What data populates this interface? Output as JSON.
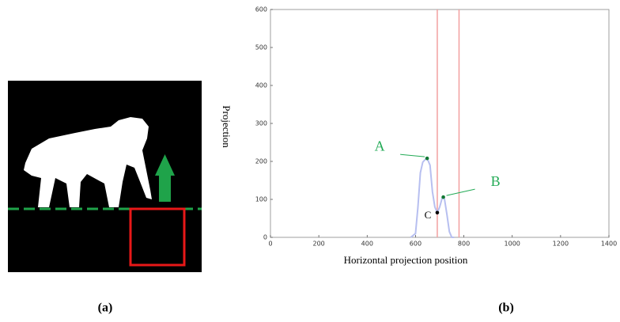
{
  "chart_data": {
    "type": "line",
    "xlabel": "Horizontal projection position",
    "ylabel": "Projection",
    "xlim": [
      0,
      1400
    ],
    "xticks": [
      0,
      200,
      400,
      600,
      800,
      1000,
      1200,
      1400
    ],
    "ylim": [
      0,
      600
    ],
    "yticks": [
      0,
      100,
      200,
      300,
      400,
      500,
      600
    ],
    "x": [
      580,
      600,
      610,
      620,
      630,
      640,
      648,
      660,
      670,
      680,
      690,
      700,
      710,
      715,
      720,
      730,
      740,
      750,
      760
    ],
    "series": [
      {
        "color": "#b7bff0",
        "values": [
          0,
          10,
          80,
          170,
          198,
          205,
          208,
          190,
          120,
          80,
          65,
          80,
          103,
          106,
          100,
          60,
          15,
          0,
          0
        ]
      }
    ],
    "vlines": {
      "color": "#f2a0a0",
      "values": [
        690,
        780
      ]
    },
    "annotations": [
      {
        "label": "A",
        "x": 648,
        "y": 208,
        "color": "#22aa55"
      },
      {
        "label": "B",
        "x": 715,
        "y": 106,
        "color": "#22aa55"
      },
      {
        "label": "C",
        "x": 690,
        "y": 65,
        "color": "#000000"
      }
    ]
  },
  "captions": [
    "(a)",
    "(b)"
  ]
}
